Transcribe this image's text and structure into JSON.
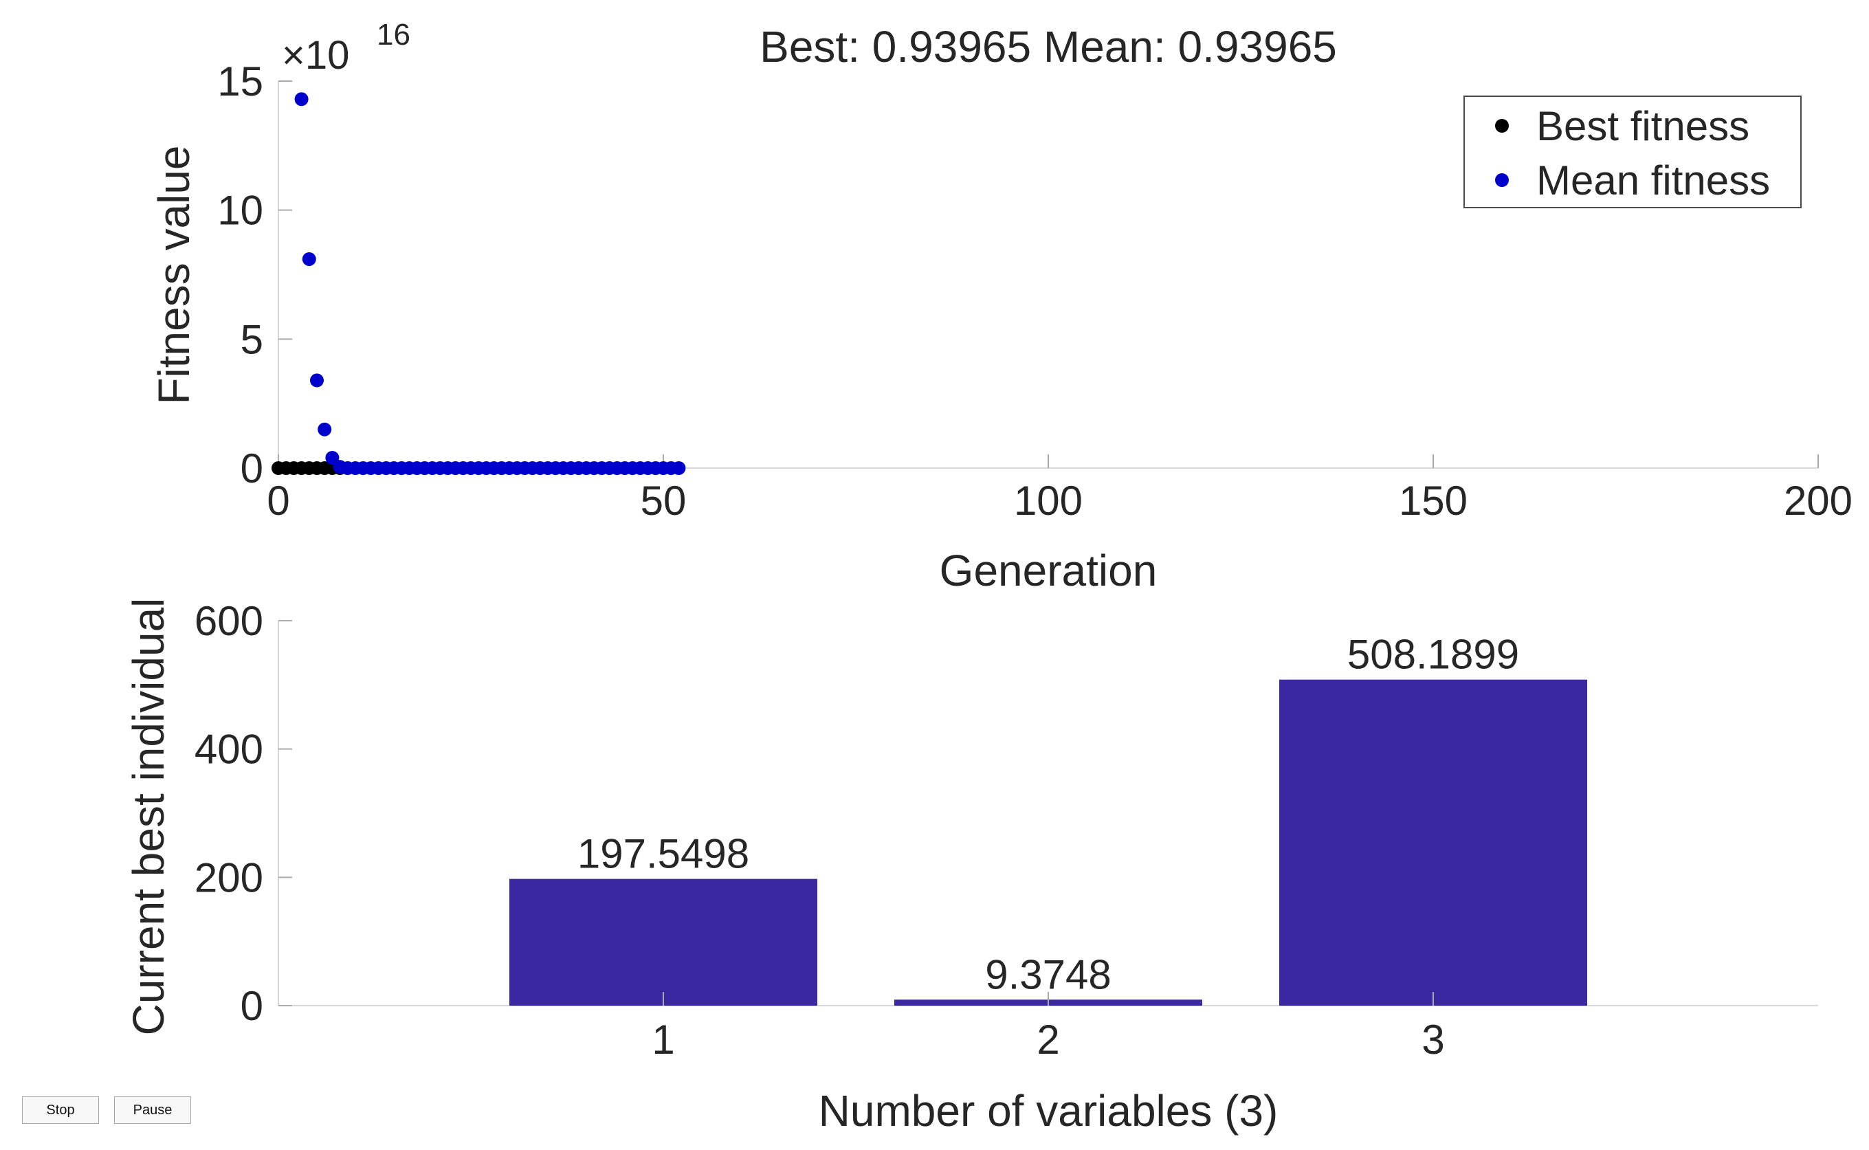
{
  "controls": {
    "stop_label": "Stop",
    "pause_label": "Pause"
  },
  "chart_data": [
    {
      "type": "scatter",
      "title": "Best: 0.93965 Mean: 0.93965",
      "xlabel": "Generation",
      "ylabel": "Fitness value",
      "y_exponent_label": "×10",
      "y_exponent_power": "16",
      "xlim": [
        0,
        200
      ],
      "ylim": [
        0,
        15
      ],
      "xticks": [
        0,
        50,
        100,
        150,
        200
      ],
      "yticks": [
        0,
        5,
        10,
        15
      ],
      "grid": false,
      "legend_position": "top-right",
      "series": [
        {
          "name": "Best fitness",
          "color": "#000000",
          "x": [
            0,
            1,
            2,
            3,
            4,
            5,
            6,
            7,
            8
          ],
          "y": [
            0,
            0,
            0,
            0,
            0,
            0,
            0,
            0,
            0
          ]
        },
        {
          "name": "Mean fitness",
          "color": "#0000cc",
          "x": [
            3,
            4,
            5,
            6,
            7,
            8,
            9,
            10,
            11,
            12,
            13,
            14,
            15,
            16,
            17,
            18,
            19,
            20,
            21,
            22,
            23,
            24,
            25,
            26,
            27,
            28,
            29,
            30,
            31,
            32,
            33,
            34,
            35,
            36,
            37,
            38,
            39,
            40,
            41,
            42,
            43,
            44,
            45,
            46,
            47,
            48,
            49,
            50,
            51,
            52
          ],
          "y": [
            14.3,
            8.1,
            3.4,
            1.5,
            0.4,
            0.05,
            0,
            0,
            0,
            0,
            0,
            0,
            0,
            0,
            0,
            0,
            0,
            0,
            0,
            0,
            0,
            0,
            0,
            0,
            0,
            0,
            0,
            0,
            0,
            0,
            0,
            0,
            0,
            0,
            0,
            0,
            0,
            0,
            0,
            0,
            0,
            0,
            0,
            0,
            0,
            0,
            0,
            0,
            0,
            0
          ]
        }
      ]
    },
    {
      "type": "bar",
      "xlabel": "Number of variables (3)",
      "ylabel": "Current best individual",
      "categories": [
        "1",
        "2",
        "3"
      ],
      "values": [
        197.5498,
        9.3748,
        508.1899
      ],
      "value_labels": [
        "197.5498",
        "9.3748",
        "508.1899"
      ],
      "ylim": [
        0,
        600
      ],
      "yticks": [
        0,
        200,
        400,
        600
      ],
      "xlim": [
        0,
        4
      ],
      "bar_color": "#3a28a3"
    }
  ]
}
